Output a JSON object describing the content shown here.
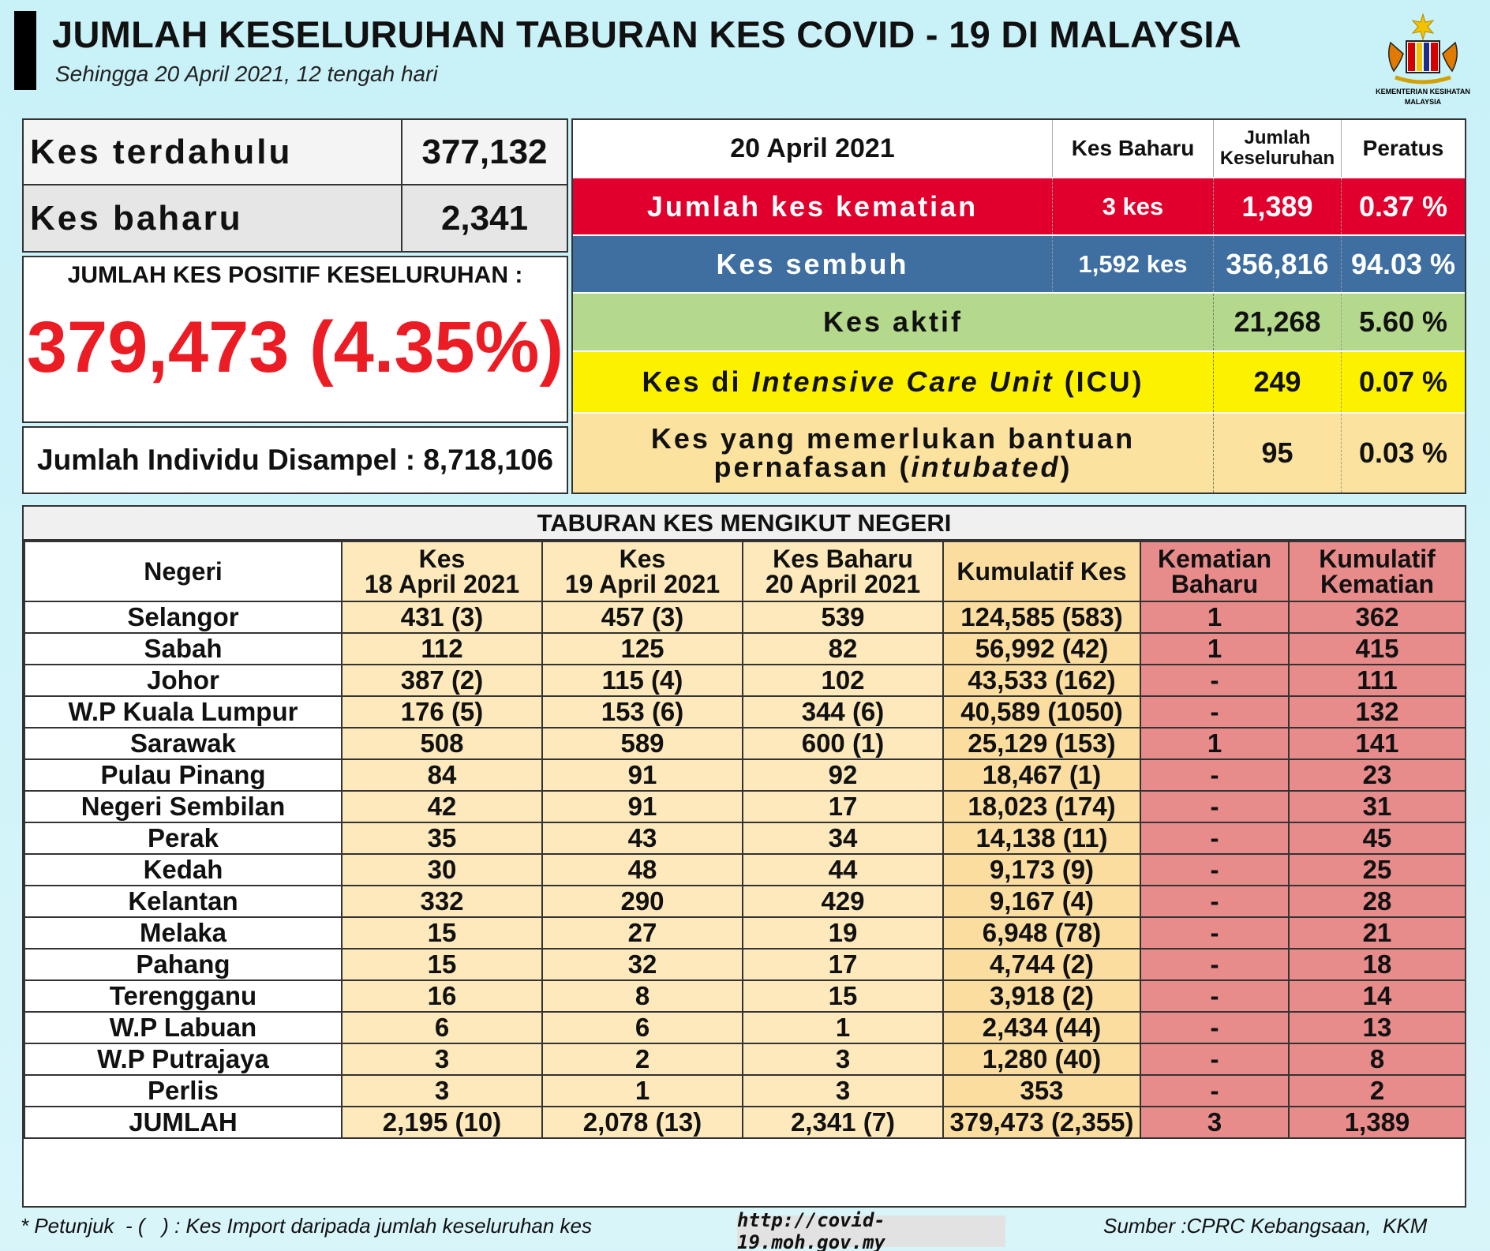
{
  "header": {
    "title": "JUMLAH KESELURUHAN TABURAN KES COVID - 19 DI MALAYSIA",
    "subtitle": "Sehingga 20 April 2021, 12 tengah hari",
    "logo_text_1": "KEMENTERIAN KESIHATAN",
    "logo_text_2": "MALAYSIA"
  },
  "left": {
    "prev_label": "Kes terdahulu",
    "prev_value": "377,132",
    "new_label": "Kes baharu",
    "new_value": "2,341",
    "positive_title": "JUMLAH KES POSITIF KESELURUHAN :",
    "positive_value": "379,473 (4.35%)",
    "sampled_text": "Jumlah Individu Disampel : 8,718,106"
  },
  "summary": {
    "date": "20 April 2021",
    "col_new": "Kes Baharu",
    "col_total_1": "Jumlah",
    "col_total_2": "Keseluruhan",
    "col_pct": "Peratus",
    "rows": [
      {
        "label": "Jumlah kes kematian",
        "new": "3 kes",
        "total": "1,389",
        "pct": "0.37 %",
        "color": "#e1002d"
      },
      {
        "label": "Kes sembuh",
        "new": "1,592 kes",
        "total": "356,816",
        "pct": "94.03 %",
        "color": "#3f6fa1"
      },
      {
        "label": "Kes aktif",
        "new": "",
        "total": "21,268",
        "pct": "5.60 %",
        "color": "#b5d98c"
      },
      {
        "label_pre": "Kes di ",
        "label_italic": "Intensive Care Unit",
        "label_post": " (ICU)",
        "total": "249",
        "pct": "0.07 %",
        "color": "#fcf200"
      },
      {
        "label_1": "Kes yang memerlukan bantuan",
        "label_2_pre": "pernafasan (",
        "label_2_italic": "intubated",
        "label_2_post": ")",
        "total": "95",
        "pct": "0.03 %",
        "color": "#fbe29e"
      }
    ]
  },
  "states": {
    "title": "TABURAN KES MENGIKUT NEGERI",
    "headers": {
      "negeri": "Negeri",
      "d18_1": "Kes",
      "d18_2": "18 April 2021",
      "d19_1": "Kes",
      "d19_2": "19 April 2021",
      "d20_1": "Kes Baharu",
      "d20_2": "20 April 2021",
      "cumulative": "Kumulatif Kes",
      "newdeath_1": "Kematian",
      "newdeath_2": "Baharu",
      "cumdeath_1": "Kumulatif",
      "cumdeath_2": "Kematian"
    },
    "rows": [
      [
        "Selangor",
        "431 (3)",
        "457 (3)",
        "539",
        "124,585 (583)",
        "1",
        "362"
      ],
      [
        "Sabah",
        "112",
        "125",
        "82",
        "56,992 (42)",
        "1",
        "415"
      ],
      [
        "Johor",
        "387 (2)",
        "115 (4)",
        "102",
        "43,533 (162)",
        "-",
        "111"
      ],
      [
        "W.P Kuala Lumpur",
        "176 (5)",
        "153 (6)",
        "344 (6)",
        "40,589 (1050)",
        "-",
        "132"
      ],
      [
        "Sarawak",
        "508",
        "589",
        "600 (1)",
        "25,129 (153)",
        "1",
        "141"
      ],
      [
        "Pulau Pinang",
        "84",
        "91",
        "92",
        "18,467 (1)",
        "-",
        "23"
      ],
      [
        "Negeri Sembilan",
        "42",
        "91",
        "17",
        "18,023 (174)",
        "-",
        "31"
      ],
      [
        "Perak",
        "35",
        "43",
        "34",
        "14,138 (11)",
        "-",
        "45"
      ],
      [
        "Kedah",
        "30",
        "48",
        "44",
        "9,173 (9)",
        "-",
        "25"
      ],
      [
        "Kelantan",
        "332",
        "290",
        "429",
        "9,167 (4)",
        "-",
        "28"
      ],
      [
        "Melaka",
        "15",
        "27",
        "19",
        "6,948 (78)",
        "-",
        "21"
      ],
      [
        "Pahang",
        "15",
        "32",
        "17",
        "4,744 (2)",
        "-",
        "18"
      ],
      [
        "Terengganu",
        "16",
        "8",
        "15",
        "3,918 (2)",
        "-",
        "14"
      ],
      [
        "W.P Labuan",
        "6",
        "6",
        "1",
        "2,434 (44)",
        "-",
        "13"
      ],
      [
        "W.P Putrajaya",
        "3",
        "2",
        "3",
        "1,280 (40)",
        "-",
        "8"
      ],
      [
        "Perlis",
        "3",
        "1",
        "3",
        "353",
        "-",
        "2"
      ],
      [
        "JUMLAH",
        "2,195 (10)",
        "2,078 (13)",
        "2,341 (7)",
        "379,473 (2,355)",
        "3",
        "1,389"
      ]
    ]
  },
  "footer": {
    "note": "* Petunjuk  - (   ) : Kes Import daripada jumlah keseluruhan kes",
    "url": "http://covid-19.moh.gov.my",
    "source": "Sumber :CPRC Kebangsaan,  KKM"
  }
}
